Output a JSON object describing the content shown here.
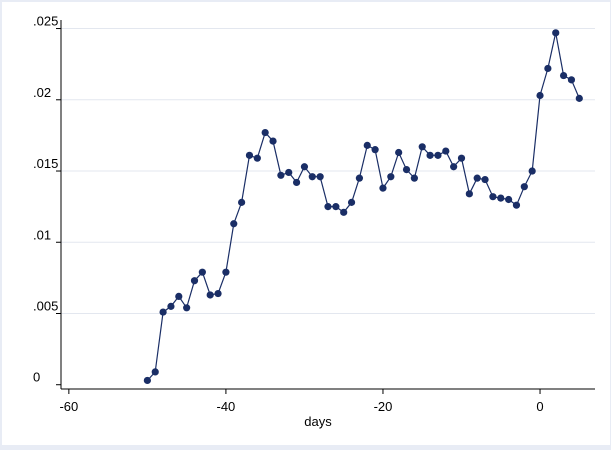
{
  "chart_data": {
    "type": "line",
    "xlabel": "days",
    "ylabel": "",
    "xlim": [
      -61,
      7
    ],
    "ylim": [
      -0.0003,
      0.0256
    ],
    "xticks": [
      -60,
      -40,
      -20,
      0
    ],
    "xtick_labels": [
      "-60",
      "-40",
      "-20",
      "0"
    ],
    "yticks": [
      0,
      0.005,
      0.01,
      0.015,
      0.02,
      0.025
    ],
    "ytick_labels": [
      "0",
      ".005",
      ".01",
      ".015",
      ".02",
      ".025"
    ],
    "grid": "horizontal",
    "legend": "none",
    "series": [
      {
        "color": "#1a2e66",
        "marker": "circle",
        "x": [
          -50,
          -49,
          -48,
          -47,
          -46,
          -45,
          -44,
          -43,
          -42,
          -41,
          -40,
          -39,
          -38,
          -37,
          -36,
          -35,
          -34,
          -33,
          -32,
          -31,
          -30,
          -29,
          -28,
          -27,
          -26,
          -25,
          -24,
          -23,
          -22,
          -21,
          -20,
          -19,
          -18,
          -17,
          -16,
          -15,
          -14,
          -13,
          -12,
          -11,
          -10,
          -9,
          -8,
          -7,
          -6,
          -5,
          -4,
          -3,
          -2,
          -1,
          0,
          1,
          2,
          3,
          4,
          5
        ],
        "y": [
          0.0003,
          0.0009,
          0.0051,
          0.0055,
          0.0062,
          0.0054,
          0.0073,
          0.0079,
          0.0063,
          0.0064,
          0.0079,
          0.0113,
          0.0128,
          0.0161,
          0.0159,
          0.0177,
          0.0171,
          0.0147,
          0.0149,
          0.0142,
          0.0153,
          0.0146,
          0.0146,
          0.0125,
          0.0125,
          0.0121,
          0.0128,
          0.0145,
          0.0168,
          0.0165,
          0.0138,
          0.0146,
          0.0163,
          0.0151,
          0.0145,
          0.0167,
          0.0161,
          0.0161,
          0.0164,
          0.0153,
          0.0159,
          0.0134,
          0.0145,
          0.0144,
          0.0132,
          0.0131,
          0.013,
          0.0126,
          0.0139,
          0.015,
          0.0203,
          0.0222,
          0.0247,
          0.0217,
          0.0214,
          0.0201
        ]
      }
    ]
  }
}
